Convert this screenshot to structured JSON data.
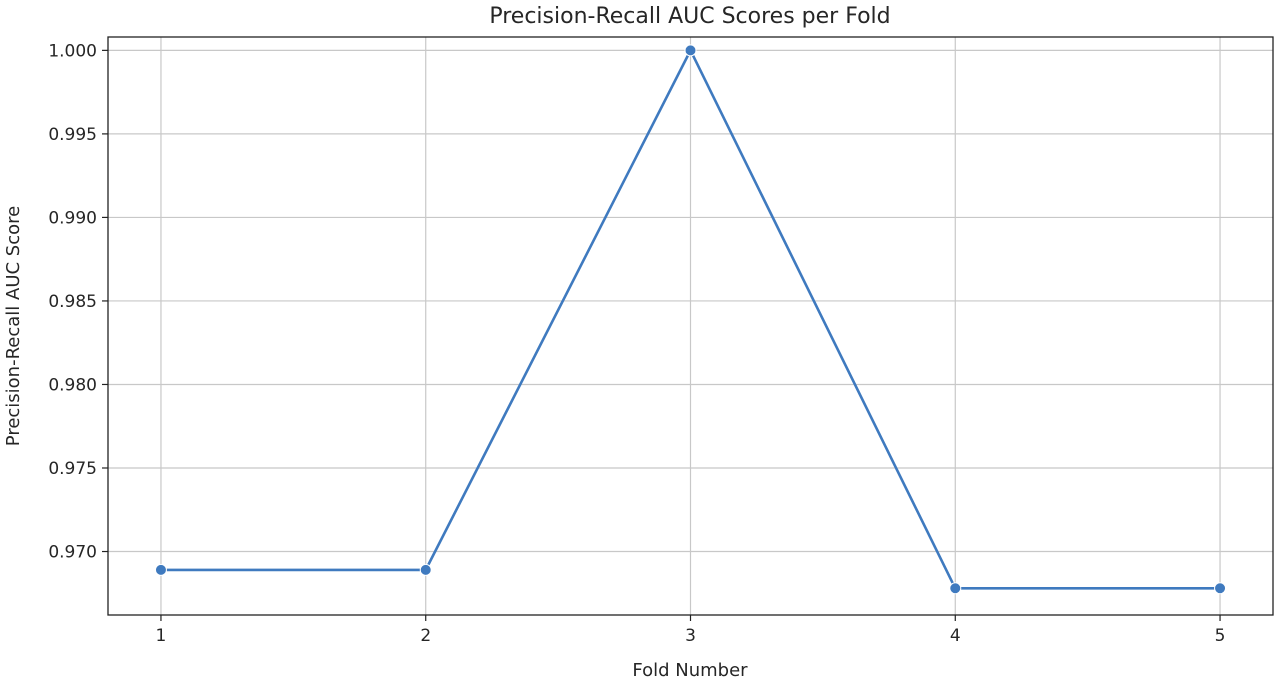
{
  "chart_data": {
    "type": "line",
    "title": "Precision-Recall AUC Scores per Fold",
    "xlabel": "Fold Number",
    "ylabel": "Precision-Recall AUC Score",
    "x": [
      1,
      2,
      3,
      4,
      5
    ],
    "x_tick_labels": [
      "1",
      "2",
      "3",
      "4",
      "5"
    ],
    "y_ticks": [
      0.97,
      0.975,
      0.98,
      0.985,
      0.99,
      0.995,
      1.0
    ],
    "y_tick_labels": [
      "0.970",
      "0.975",
      "0.980",
      "0.985",
      "0.990",
      "0.995",
      "1.000"
    ],
    "xlim": [
      0.8,
      5.2
    ],
    "ylim": [
      0.9662,
      1.0008
    ],
    "grid": true,
    "series": [
      {
        "values": [
          0.9689,
          0.9689,
          1.0,
          0.9678,
          0.9678
        ],
        "color": "#3f7abf",
        "marker": "circle"
      }
    ]
  }
}
